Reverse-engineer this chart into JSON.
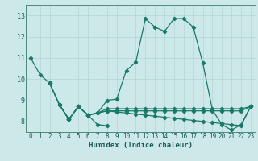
{
  "xlabel": "Humidex (Indice chaleur)",
  "xlim": [
    -0.5,
    23.5
  ],
  "ylim": [
    7.5,
    13.5
  ],
  "yticks": [
    8,
    9,
    10,
    11,
    12,
    13
  ],
  "xticks": [
    0,
    1,
    2,
    3,
    4,
    5,
    6,
    7,
    8,
    9,
    10,
    11,
    12,
    13,
    14,
    15,
    16,
    17,
    18,
    19,
    20,
    21,
    22,
    23
  ],
  "bg_color": "#cce8e8",
  "grid_color": "#b8d8d8",
  "line_color": "#1a7a6a",
  "series0": {
    "x": [
      0,
      1,
      2,
      3,
      4,
      5,
      6,
      7,
      8,
      9,
      10,
      11,
      12,
      13,
      14,
      15,
      16,
      17,
      18,
      19,
      20,
      21,
      22,
      23
    ],
    "y": [
      11.0,
      10.2,
      9.8,
      8.8,
      8.1,
      8.7,
      8.3,
      8.4,
      9.0,
      9.05,
      10.4,
      10.8,
      12.85,
      12.45,
      12.25,
      12.85,
      12.85,
      12.45,
      10.75,
      8.55,
      7.85,
      7.6,
      7.85,
      8.7
    ]
  },
  "series1": {
    "x": [
      2,
      3,
      4,
      5,
      6,
      7,
      8,
      9,
      10,
      11,
      12,
      13,
      14,
      15,
      16,
      17,
      18,
      19,
      20,
      21,
      22,
      23
    ],
    "y": [
      9.8,
      8.8,
      8.1,
      8.7,
      8.3,
      8.4,
      8.6,
      8.6,
      8.6,
      8.6,
      8.6,
      8.6,
      8.6,
      8.6,
      8.6,
      8.6,
      8.6,
      8.6,
      8.6,
      8.6,
      8.6,
      8.7
    ]
  },
  "series2": {
    "x": [
      2,
      3,
      4,
      5,
      6,
      7,
      8,
      9,
      10,
      11,
      12,
      13,
      14,
      15,
      16,
      17,
      18,
      19,
      20,
      21,
      22,
      23
    ],
    "y": [
      9.8,
      8.8,
      8.1,
      8.7,
      8.3,
      8.4,
      8.5,
      8.45,
      8.4,
      8.35,
      8.3,
      8.25,
      8.2,
      8.15,
      8.1,
      8.05,
      8.0,
      7.95,
      7.9,
      7.85,
      7.8,
      8.7
    ]
  },
  "series3": {
    "x": [
      3,
      4,
      5,
      6,
      7,
      8,
      9,
      10,
      11,
      12,
      13,
      14,
      15,
      16,
      17,
      18,
      19,
      20,
      21,
      22,
      23
    ],
    "y": [
      8.8,
      8.1,
      8.7,
      8.3,
      8.4,
      8.5,
      8.5,
      8.5,
      8.5,
      8.5,
      8.5,
      8.5,
      8.5,
      8.5,
      8.5,
      8.5,
      8.5,
      8.5,
      8.5,
      8.5,
      8.7
    ]
  },
  "series4": {
    "x": [
      3,
      4,
      5,
      6,
      7,
      8
    ],
    "y": [
      8.8,
      8.1,
      8.7,
      8.3,
      7.85,
      7.8
    ]
  }
}
